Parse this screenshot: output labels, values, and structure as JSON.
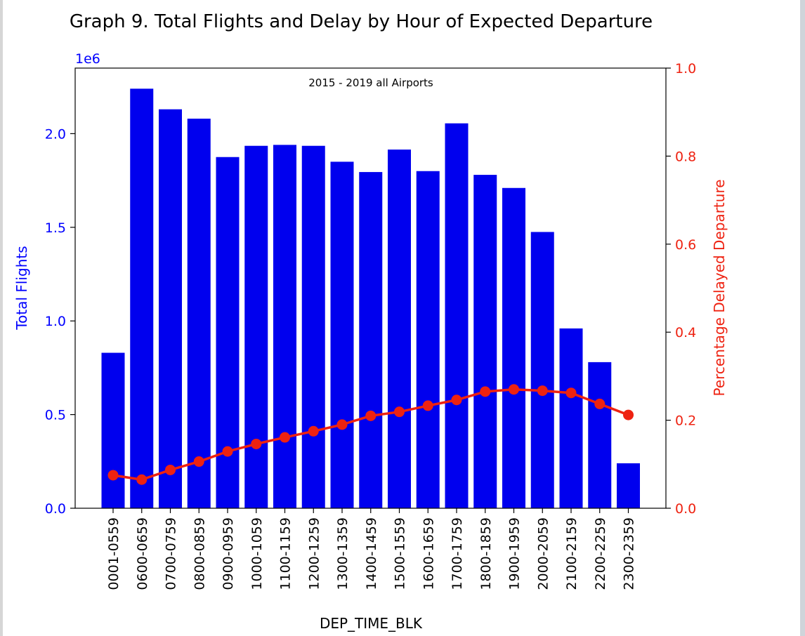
{
  "chart_data": {
    "type": "bar",
    "title": "Graph 9. Total Flights and Delay by Hour of Expected Departure",
    "annotation": "2015 - 2019 all Airports",
    "xlabel": "DEP_TIME_BLK",
    "left_axis": {
      "label": "Total Flights",
      "scale_label": "1e6",
      "range": [
        0,
        2.35
      ],
      "ticks": [
        "0.0",
        "0.5",
        "1.0",
        "1.5",
        "2.0"
      ],
      "tick_values": [
        0,
        0.5,
        1.0,
        1.5,
        2.0
      ],
      "color": "#0000ff"
    },
    "right_axis": {
      "label": "Percentage Delayed Departure",
      "range": [
        0,
        1.0
      ],
      "ticks": [
        "0.0",
        "0.2",
        "0.4",
        "0.6",
        "0.8",
        "1.0"
      ],
      "tick_values": [
        0,
        0.2,
        0.4,
        0.6,
        0.8,
        1.0
      ],
      "color": "#ee2211"
    },
    "categories": [
      "0001-0559",
      "0600-0659",
      "0700-0759",
      "0800-0859",
      "0900-0959",
      "1000-1059",
      "1100-1159",
      "1200-1259",
      "1300-1359",
      "1400-1459",
      "1500-1559",
      "1600-1659",
      "1700-1759",
      "1800-1859",
      "1900-1959",
      "2000-2059",
      "2100-2159",
      "2200-2259",
      "2300-2359"
    ],
    "series": [
      {
        "kind": "bar",
        "axis": "left",
        "color": "#0000ee",
        "values": [
          0.83,
          2.24,
          2.13,
          2.08,
          1.875,
          1.935,
          1.94,
          1.935,
          1.85,
          1.795,
          1.915,
          1.8,
          2.055,
          1.78,
          1.71,
          1.475,
          0.96,
          0.78,
          0.24
        ]
      },
      {
        "kind": "line",
        "axis": "right",
        "color": "#ee2211",
        "values": [
          0.075,
          0.065,
          0.087,
          0.106,
          0.129,
          0.146,
          0.161,
          0.175,
          0.19,
          0.21,
          0.219,
          0.233,
          0.246,
          0.265,
          0.27,
          0.267,
          0.262,
          0.237,
          0.212
        ]
      }
    ],
    "grid": false
  }
}
